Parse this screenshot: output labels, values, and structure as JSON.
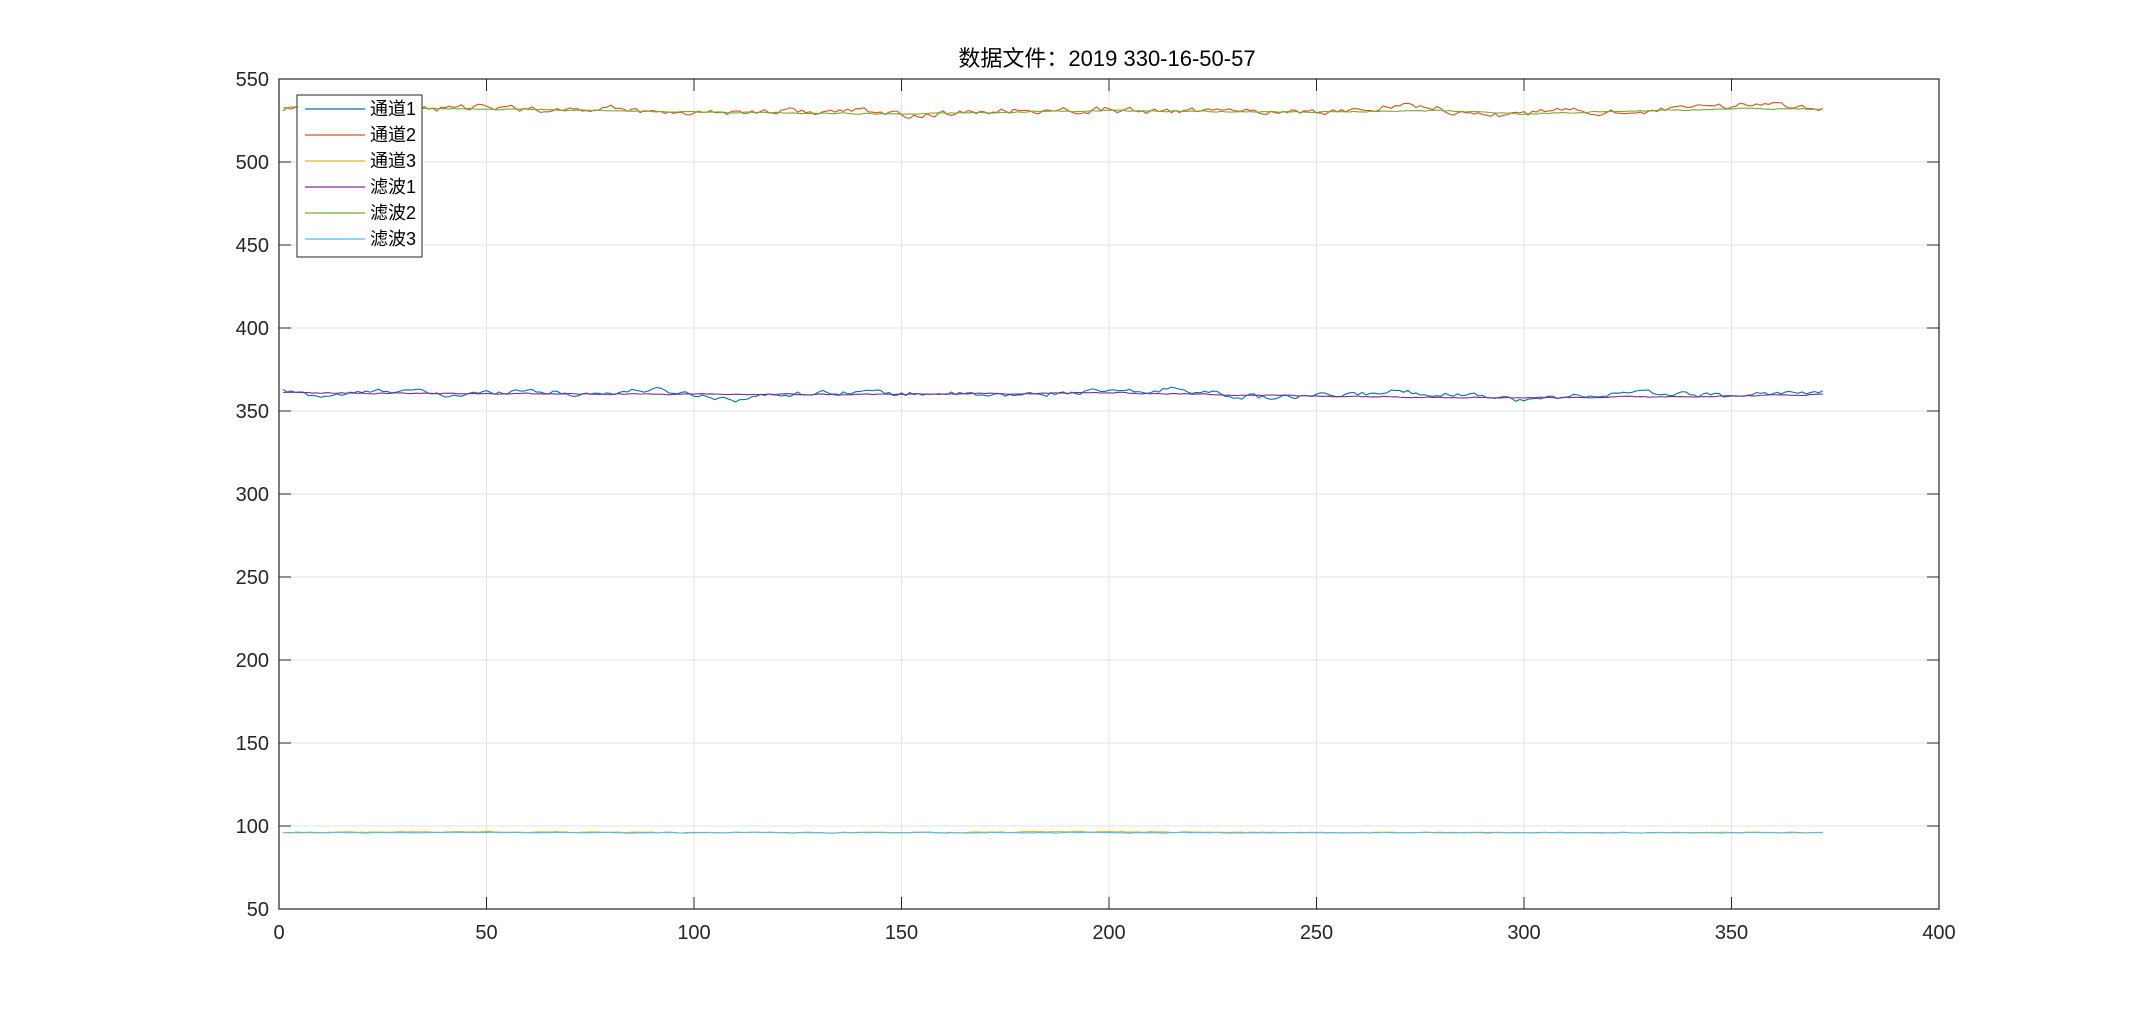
{
  "chart_data": {
    "type": "line",
    "title": "数据文件：2019 330-16-50-57",
    "xlabel": "",
    "ylabel": "",
    "xlim": [
      0,
      400
    ],
    "ylim": [
      50,
      550
    ],
    "xticks": [
      0,
      50,
      100,
      150,
      200,
      250,
      300,
      350,
      400
    ],
    "yticks": [
      50,
      100,
      150,
      200,
      250,
      300,
      350,
      400,
      450,
      500,
      550
    ],
    "grid": true,
    "legend_position": "top-left",
    "sample_count": 372,
    "series": [
      {
        "name": "通道1",
        "color": "#0072BD",
        "level": 360.5,
        "wiggle": 2.4,
        "points": [
          [
            1,
            362
          ],
          [
            10,
            359
          ],
          [
            20,
            361
          ],
          [
            30,
            363
          ],
          [
            40,
            359
          ],
          [
            50,
            361
          ],
          [
            60,
            363
          ],
          [
            70,
            360
          ],
          [
            80,
            361
          ],
          [
            90,
            363
          ],
          [
            100,
            360
          ],
          [
            110,
            357
          ],
          [
            120,
            360
          ],
          [
            130,
            361
          ],
          [
            140,
            362
          ],
          [
            150,
            360
          ],
          [
            160,
            361
          ],
          [
            170,
            359
          ],
          [
            180,
            360
          ],
          [
            190,
            361
          ],
          [
            200,
            362
          ],
          [
            210,
            361
          ],
          [
            215,
            364
          ],
          [
            230,
            359
          ],
          [
            240,
            358
          ],
          [
            250,
            359
          ],
          [
            260,
            360
          ],
          [
            270,
            362
          ],
          [
            280,
            360
          ],
          [
            290,
            360
          ],
          [
            300,
            356
          ],
          [
            310,
            359
          ],
          [
            320,
            360
          ],
          [
            330,
            361
          ],
          [
            340,
            360
          ],
          [
            350,
            359
          ],
          [
            360,
            361
          ],
          [
            372,
            361
          ]
        ]
      },
      {
        "name": "通道2",
        "color": "#D95319",
        "level": 531,
        "wiggle": 3.0,
        "points": [
          [
            1,
            532
          ],
          [
            10,
            534
          ],
          [
            20,
            533
          ],
          [
            30,
            532
          ],
          [
            40,
            532
          ],
          [
            50,
            533
          ],
          [
            60,
            532
          ],
          [
            70,
            531
          ],
          [
            80,
            533
          ],
          [
            90,
            530
          ],
          [
            100,
            530
          ],
          [
            110,
            530
          ],
          [
            120,
            531
          ],
          [
            130,
            530
          ],
          [
            140,
            531
          ],
          [
            150,
            528
          ],
          [
            160,
            529
          ],
          [
            170,
            530
          ],
          [
            180,
            531
          ],
          [
            190,
            531
          ],
          [
            200,
            532
          ],
          [
            210,
            530
          ],
          [
            220,
            531
          ],
          [
            230,
            530
          ],
          [
            240,
            531
          ],
          [
            250,
            530
          ],
          [
            260,
            531
          ],
          [
            270,
            535
          ],
          [
            280,
            532
          ],
          [
            290,
            528
          ],
          [
            300,
            529
          ],
          [
            310,
            531
          ],
          [
            320,
            530
          ],
          [
            330,
            531
          ],
          [
            340,
            532
          ],
          [
            350,
            534
          ],
          [
            360,
            535
          ],
          [
            372,
            533
          ]
        ]
      },
      {
        "name": "通道3",
        "color": "#EDB120",
        "level": 96,
        "wiggle": 0.5,
        "points": [
          [
            1,
            96
          ],
          [
            50,
            96.5
          ],
          [
            100,
            96
          ],
          [
            150,
            96
          ],
          [
            200,
            96.5
          ],
          [
            250,
            96
          ],
          [
            300,
            96
          ],
          [
            350,
            96
          ],
          [
            372,
            96
          ]
        ]
      },
      {
        "name": "滤波1",
        "color": "#7E2F8E",
        "level": 360,
        "wiggle": 0.6,
        "points": [
          [
            1,
            361
          ],
          [
            50,
            360.5
          ],
          [
            100,
            360
          ],
          [
            150,
            360
          ],
          [
            200,
            361
          ],
          [
            250,
            359
          ],
          [
            300,
            358
          ],
          [
            350,
            359
          ],
          [
            372,
            360
          ]
        ]
      },
      {
        "name": "滤波2",
        "color": "#77AC30",
        "level": 531,
        "wiggle": 0.6,
        "points": [
          [
            1,
            533
          ],
          [
            50,
            532
          ],
          [
            100,
            530
          ],
          [
            150,
            529
          ],
          [
            200,
            531
          ],
          [
            250,
            530
          ],
          [
            280,
            531
          ],
          [
            300,
            529
          ],
          [
            350,
            532
          ],
          [
            372,
            532
          ]
        ]
      },
      {
        "name": "滤波3",
        "color": "#4DBEEE",
        "level": 96,
        "wiggle": 0.4,
        "points": [
          [
            1,
            96
          ],
          [
            50,
            96
          ],
          [
            100,
            96
          ],
          [
            150,
            96
          ],
          [
            200,
            96
          ],
          [
            250,
            96
          ],
          [
            300,
            96
          ],
          [
            350,
            96
          ],
          [
            372,
            96
          ]
        ]
      }
    ]
  }
}
